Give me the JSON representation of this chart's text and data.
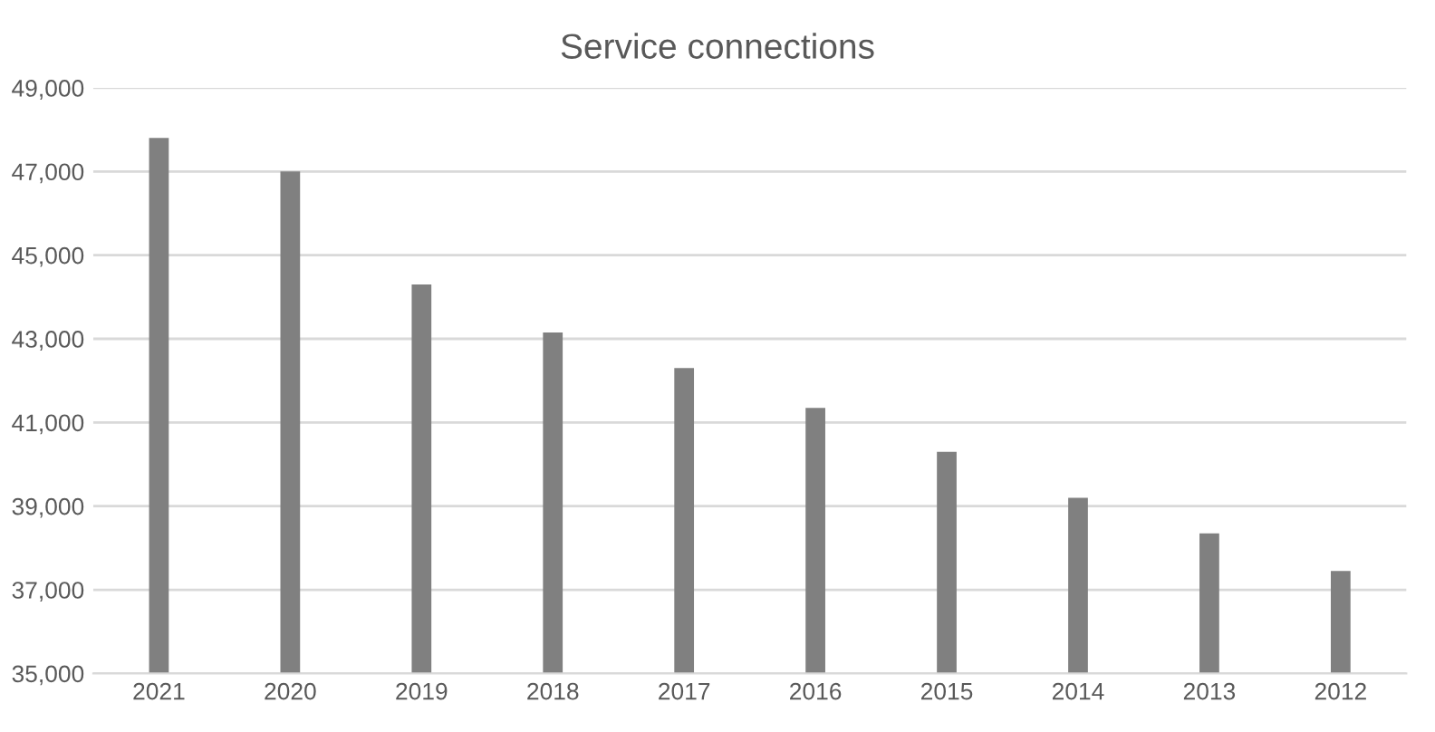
{
  "chart_data": {
    "type": "bar",
    "title": "Service connections",
    "categories": [
      "2021",
      "2020",
      "2019",
      "2018",
      "2017",
      "2016",
      "2015",
      "2014",
      "2013",
      "2012"
    ],
    "series": [
      {
        "color": "#808080",
        "values": [
          47800,
          47000,
          44300,
          43150,
          42300,
          41350,
          40300,
          39200,
          38350,
          37450
        ]
      }
    ],
    "ylim": [
      35000,
      49000
    ],
    "yticks": [
      {
        "value": 35000,
        "label": "35,000"
      },
      {
        "value": 37000,
        "label": "37,000"
      },
      {
        "value": 39000,
        "label": "39,000"
      },
      {
        "value": 41000,
        "label": "41,000"
      },
      {
        "value": 43000,
        "label": "43,000"
      },
      {
        "value": 45000,
        "label": "45,000"
      },
      {
        "value": 47000,
        "label": "47,000"
      },
      {
        "value": 49000,
        "label": "49,000"
      }
    ],
    "grid": "y",
    "legend": false
  }
}
